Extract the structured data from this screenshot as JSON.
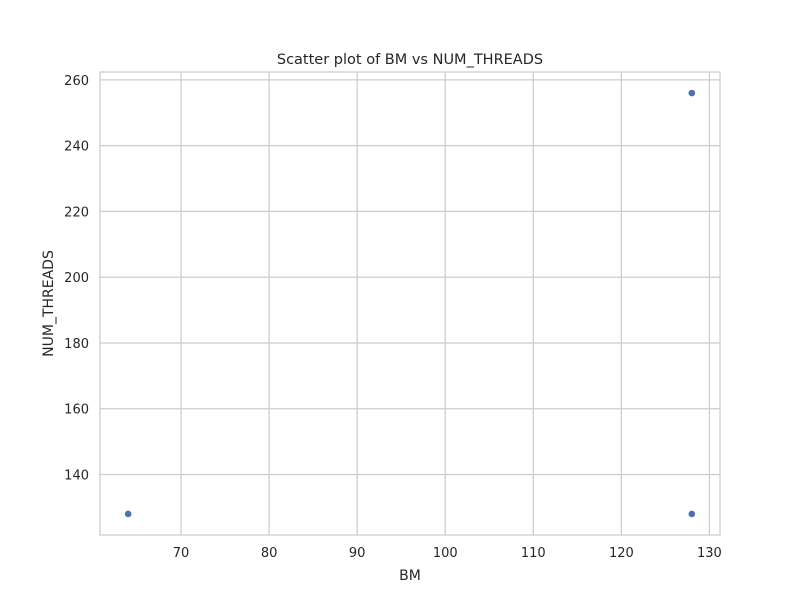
{
  "chart_data": {
    "type": "scatter",
    "title": "Scatter plot of BM vs NUM_THREADS",
    "xlabel": "BM",
    "ylabel": "NUM_THREADS",
    "xlim": [
      60.8,
      131.2
    ],
    "ylim": [
      121.6,
      262.4
    ],
    "xticks": [
      70,
      80,
      90,
      100,
      110,
      120,
      130
    ],
    "yticks": [
      140,
      160,
      180,
      200,
      220,
      240,
      260
    ],
    "grid": true,
    "legend": "none",
    "points": [
      {
        "x": 64,
        "y": 128
      },
      {
        "x": 128,
        "y": 128
      },
      {
        "x": 128,
        "y": 256
      }
    ],
    "marker_color": "#4c72b0",
    "grid_color": "#cccccc",
    "spine_color": "#cccccc"
  }
}
